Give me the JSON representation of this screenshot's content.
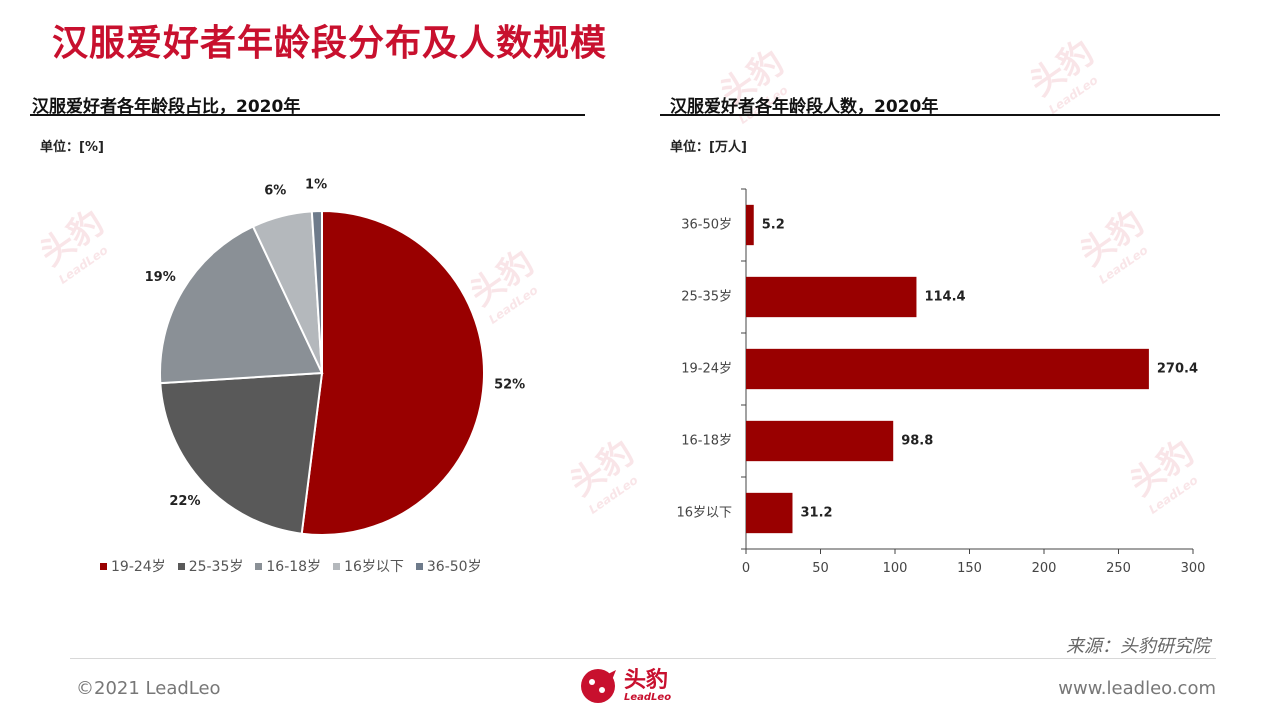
{
  "page": {
    "title": "汉服爱好者年龄段分布及人数规模",
    "source": "来源：头豹研究院",
    "copyright": "©2021 LeadLeo",
    "website": "www.leadleo.com",
    "logo_text": "头豹",
    "logo_sub": "LeadLeo",
    "watermark_text": "头豹",
    "watermark_sub": "LeadLeo"
  },
  "colors": {
    "brand": "#c8102e",
    "c1": "#990000",
    "c2": "#595959",
    "c3": "#8a9096",
    "c4": "#b4b8bc",
    "c5": "#6e7b8b"
  },
  "chart_data": [
    {
      "type": "pie",
      "title": "汉服爱好者各年龄段占比，2020年",
      "unit": "单位：[%]",
      "categories": [
        "19-24岁",
        "25-35岁",
        "16-18岁",
        "16岁以下",
        "36-50岁"
      ],
      "values": [
        52,
        22,
        19,
        6,
        1
      ],
      "value_labels": [
        "52%",
        "22%",
        "19%",
        "6%",
        "1%"
      ],
      "colors": [
        "#990000",
        "#595959",
        "#8a9096",
        "#b4b8bc",
        "#6e7b8b"
      ],
      "legend_position": "bottom"
    },
    {
      "type": "bar",
      "orientation": "horizontal",
      "title": "汉服爱好者各年龄段人数，2020年",
      "unit": "单位：[万人]",
      "categories": [
        "36-50岁",
        "25-35岁",
        "19-24岁",
        "16-18岁",
        "16岁以下"
      ],
      "values": [
        5.2,
        114.4,
        270.4,
        98.8,
        31.2
      ],
      "value_labels": [
        "5.2",
        "114.4",
        "270.4",
        "98.8",
        "31.2"
      ],
      "xlim": [
        0,
        300
      ],
      "xticks": [
        "0",
        "50",
        "100",
        "150",
        "200",
        "250",
        "300"
      ],
      "color": "#990000"
    }
  ]
}
